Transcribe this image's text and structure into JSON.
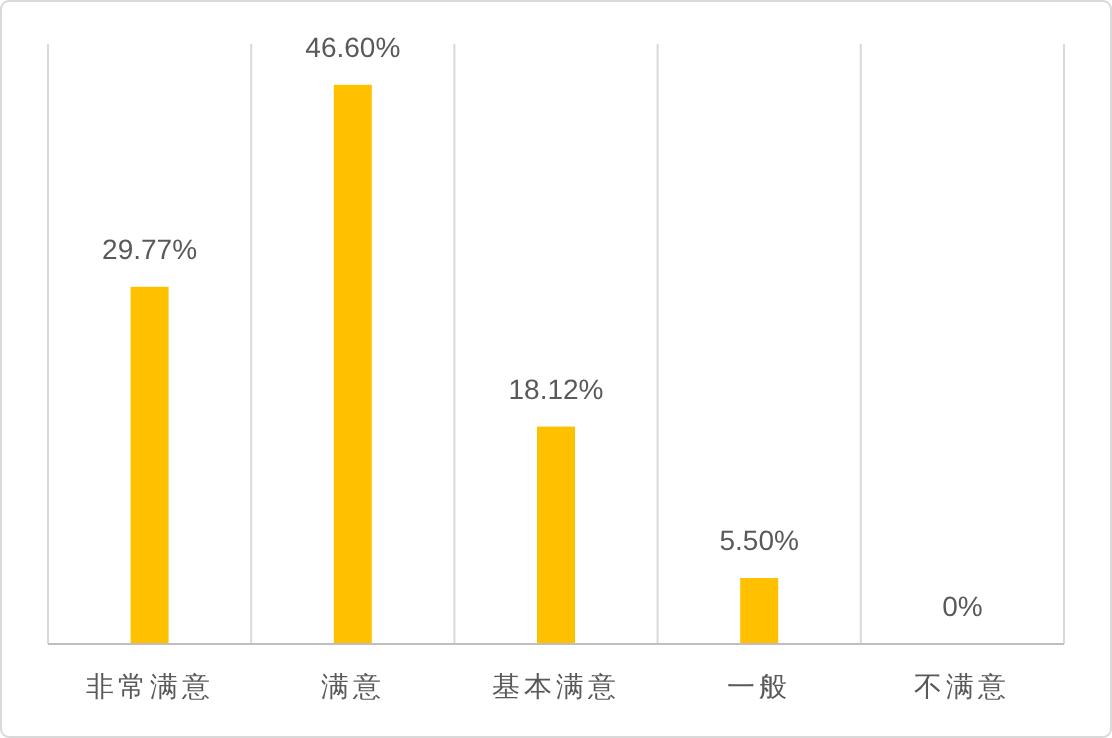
{
  "chart_data": {
    "type": "bar",
    "categories": [
      "非常满意",
      "满意",
      "基本满意",
      "一般",
      "不满意"
    ],
    "values": [
      29.77,
      46.6,
      18.12,
      5.5,
      0
    ],
    "value_labels": [
      "29.77%",
      "46.60%",
      "18.12%",
      "5.50%",
      "0%"
    ],
    "color": "#ffc000",
    "ylim": [
      0,
      50
    ],
    "tick_labels": "x",
    "grid": "x"
  }
}
